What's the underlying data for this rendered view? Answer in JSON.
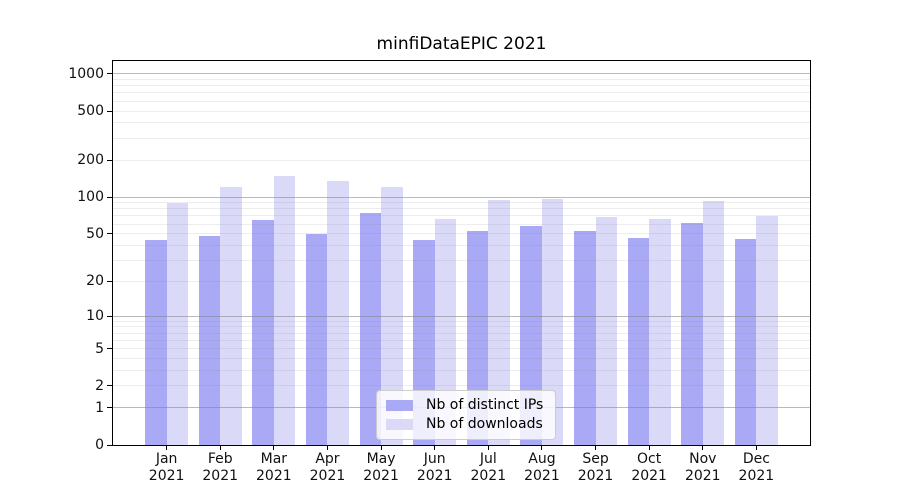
{
  "figure": {
    "background": "#ffffff",
    "text_color": "#000000",
    "axis_color": "#000000"
  },
  "chart_data": {
    "type": "bar",
    "title": "minfiDataEPIC 2021",
    "categories": [
      "Jan 2021",
      "Feb 2021",
      "Mar 2021",
      "Apr 2021",
      "May 2021",
      "Jun 2021",
      "Jul 2021",
      "Aug 2021",
      "Sep 2021",
      "Oct 2021",
      "Nov 2021",
      "Dec 2021"
    ],
    "series": [
      {
        "name": "Nb of distinct IPs",
        "color": "#a9a9f6",
        "values": [
          44,
          48,
          65,
          50,
          74,
          44,
          53,
          58,
          53,
          46,
          61,
          45
        ]
      },
      {
        "name": "Nb of downloads",
        "color": "#dadaf8",
        "values": [
          89,
          121,
          149,
          135,
          120,
          66,
          94,
          97,
          69,
          66,
          93,
          70
        ]
      }
    ],
    "yscale": "log1p",
    "yticks": [
      0,
      1,
      2,
      5,
      10,
      20,
      50,
      100,
      200,
      500,
      1000
    ],
    "ylim": [
      0,
      1270
    ],
    "xlim": [
      -1,
      12
    ],
    "bar_width": 0.4,
    "grid": {
      "visible": true,
      "axisbelow": false,
      "major_at": [
        1,
        10,
        100,
        1000
      ]
    },
    "legend": {
      "position": "lower-center"
    }
  }
}
